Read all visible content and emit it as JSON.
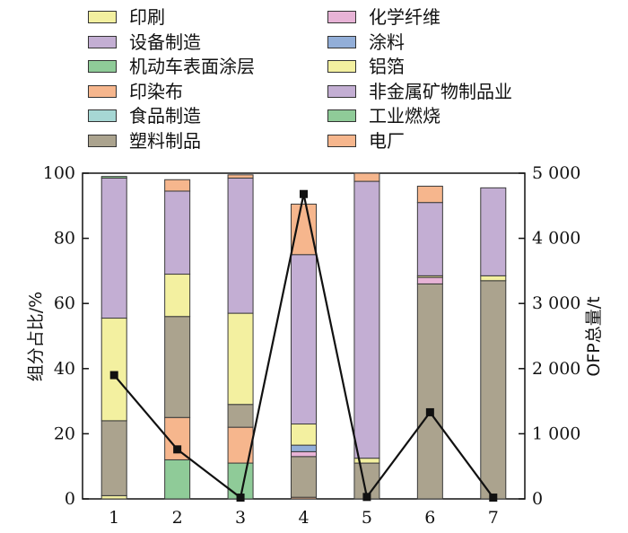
{
  "chart_data": {
    "type": "bar",
    "stacked": true,
    "categories": [
      "1",
      "2",
      "3",
      "4",
      "5",
      "6",
      "7"
    ],
    "ylabel": "组分占比/%",
    "y2label": "OFP总量/t",
    "ylim": [
      0,
      100
    ],
    "y2lim": [
      0,
      5000
    ],
    "yticks": [
      "0",
      "20",
      "40",
      "60",
      "80",
      "100"
    ],
    "y2ticks": [
      "0",
      "1 000",
      "2 000",
      "3 000",
      "4 000",
      "5 000"
    ],
    "legend": {
      "left": [
        "印刷",
        "设备制造",
        "机动车表面涂层",
        "印染布",
        "食品制造",
        "塑料制品"
      ],
      "right": [
        "化学纤维",
        "涂料",
        "铝箔",
        "非金属矿物制品业",
        "工业燃烧",
        "电厂"
      ]
    },
    "series": [
      {
        "name": "印刷",
        "color": "#F3F0A0",
        "values": [
          1,
          0,
          0,
          0,
          0,
          0,
          0
        ]
      },
      {
        "name": "设备制造",
        "color": "#C3AED3",
        "values": [
          0,
          0,
          0,
          0,
          0,
          0,
          0
        ]
      },
      {
        "name": "机动车表面涂层",
        "color": "#8FCB98",
        "values": [
          0,
          12,
          11,
          0,
          0,
          0,
          0
        ]
      },
      {
        "name": "印染布",
        "color": "#F6B68D",
        "values": [
          0,
          13,
          11,
          0.5,
          0,
          0,
          0
        ]
      },
      {
        "name": "食品制造",
        "color": "#A6D7D4",
        "values": [
          0,
          0,
          0,
          0,
          0,
          0,
          0
        ]
      },
      {
        "name": "塑料制品",
        "color": "#ABA38E",
        "values": [
          23,
          31,
          7,
          12.5,
          11,
          66,
          67
        ]
      },
      {
        "name": "化学纤维",
        "color": "#E7B3D6",
        "values": [
          0,
          0,
          0,
          1.5,
          0,
          2,
          0
        ]
      },
      {
        "name": "涂料",
        "color": "#92AED8",
        "values": [
          0,
          0,
          0,
          2,
          0,
          0,
          0
        ]
      },
      {
        "name": "铝箔",
        "color": "#F3F0A0",
        "values": [
          31.5,
          13,
          28,
          6.5,
          1.5,
          0.5,
          1.5
        ]
      },
      {
        "name": "非金属矿物制品业",
        "color": "#C3AED3",
        "values": [
          43,
          25.5,
          41.5,
          52,
          85,
          22.5,
          27
        ]
      },
      {
        "name": "工业燃烧",
        "color": "#8FCB98",
        "values": [
          0.5,
          0,
          0,
          0,
          0,
          0,
          0
        ]
      },
      {
        "name": "电厂",
        "color": "#F6B68D",
        "values": [
          0,
          3.5,
          1,
          15.5,
          2.5,
          5,
          0
        ]
      }
    ],
    "line": {
      "name": "OFP总量",
      "values": [
        1900,
        760,
        20,
        4680,
        30,
        1330,
        20
      ]
    }
  }
}
